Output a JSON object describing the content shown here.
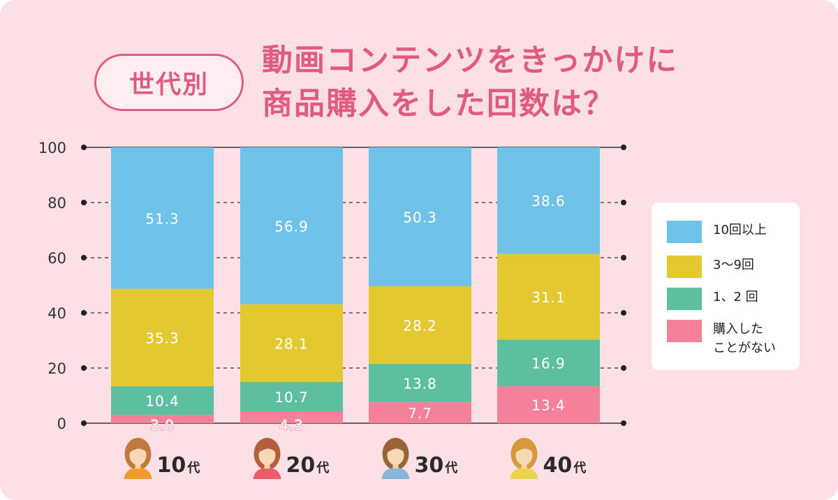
{
  "header": {
    "tag": "世代別",
    "title_line1": "動画コンテンツをきっかけに",
    "title_line2": "商品購入をした回数は？"
  },
  "colors": {
    "background": "#fde0e5",
    "accent": "#e15b7f",
    "ten_plus": "#6fc3e8",
    "three_to_nine": "#e3c830",
    "one_two": "#5ebea0",
    "never": "#f4809a"
  },
  "icons": [
    "woman-avatar-icon",
    "woman-avatar-icon",
    "woman-avatar-icon",
    "woman-avatar-icon"
  ],
  "chart_data": {
    "type": "bar",
    "stacked": true,
    "categories": [
      "10代",
      "20代",
      "30代",
      "40代"
    ],
    "category_labels": [
      {
        "num": "10",
        "suffix": "代"
      },
      {
        "num": "20",
        "suffix": "代"
      },
      {
        "num": "30",
        "suffix": "代"
      },
      {
        "num": "40",
        "suffix": "代"
      }
    ],
    "series": [
      {
        "name": "購入した\nことがない",
        "values": [
          3.0,
          4.3,
          7.7,
          13.4
        ],
        "labels": [
          "3.0",
          "4.3",
          "7.7",
          "13.4"
        ]
      },
      {
        "name": "1、2 回",
        "values": [
          10.4,
          10.7,
          13.8,
          16.9
        ],
        "labels": [
          "10.4",
          "10.7",
          "13.8",
          "16.9"
        ]
      },
      {
        "name": "3～9回",
        "values": [
          35.3,
          28.1,
          28.2,
          31.1
        ],
        "labels": [
          "35.3",
          "28.1",
          "28.2",
          "31.1"
        ]
      },
      {
        "name": "10回以上",
        "values": [
          51.3,
          56.9,
          50.3,
          38.6
        ],
        "labels": [
          "51.3",
          "56.9",
          "50.3",
          "38.6"
        ]
      }
    ],
    "yticks": [
      "0",
      "20",
      "40",
      "60",
      "80",
      "100"
    ],
    "ylim": [
      0,
      100
    ],
    "grid": true,
    "legend_position": "right"
  }
}
